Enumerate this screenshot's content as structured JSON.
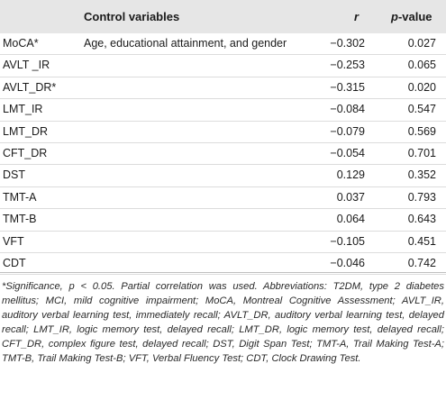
{
  "table": {
    "headers": {
      "variable": "",
      "control_variables": "Control variables",
      "r": "r",
      "p_value_p": "p",
      "p_value_suffix": "-value"
    },
    "rows": [
      {
        "variable": "MoCA*",
        "control": "Age, educational attainment, and gender",
        "r": "−0.302",
        "p": "0.027"
      },
      {
        "variable": "AVLT _IR",
        "control": "",
        "r": "−0.253",
        "p": "0.065"
      },
      {
        "variable": "AVLT_DR*",
        "control": "",
        "r": "−0.315",
        "p": "0.020"
      },
      {
        "variable": "LMT_IR",
        "control": "",
        "r": "−0.084",
        "p": "0.547"
      },
      {
        "variable": "LMT_DR",
        "control": "",
        "r": "−0.079",
        "p": "0.569"
      },
      {
        "variable": "CFT_DR",
        "control": "",
        "r": "−0.054",
        "p": "0.701"
      },
      {
        "variable": "DST",
        "control": "",
        "r": "0.129",
        "p": "0.352"
      },
      {
        "variable": "TMT-A",
        "control": "",
        "r": "0.037",
        "p": "0.793"
      },
      {
        "variable": "TMT-B",
        "control": "",
        "r": "0.064",
        "p": "0.643"
      },
      {
        "variable": "VFT",
        "control": "",
        "r": "−0.105",
        "p": "0.451"
      },
      {
        "variable": "CDT",
        "control": "",
        "r": "−0.046",
        "p": "0.742"
      }
    ]
  },
  "footnote": "*Significance, p < 0.05. Partial correlation was used. Abbreviations: T2DM, type 2 diabetes mellitus; MCI, mild cognitive impairment; MoCA, Montreal Cognitive Assessment; AVLT_IR, auditory verbal learning test, immediately recall; AVLT_DR, auditory verbal learning test, delayed recall; LMT_IR, logic memory test, delayed recall; LMT_DR, logic memory test, delayed recall; CFT_DR, complex figure test, delayed recall; DST, Digit Span Test; TMT-A, Trail Making Test-A; TMT-B, Trail Making Test-B; VFT, Verbal Fluency Test; CDT, Clock Drawing Test."
}
